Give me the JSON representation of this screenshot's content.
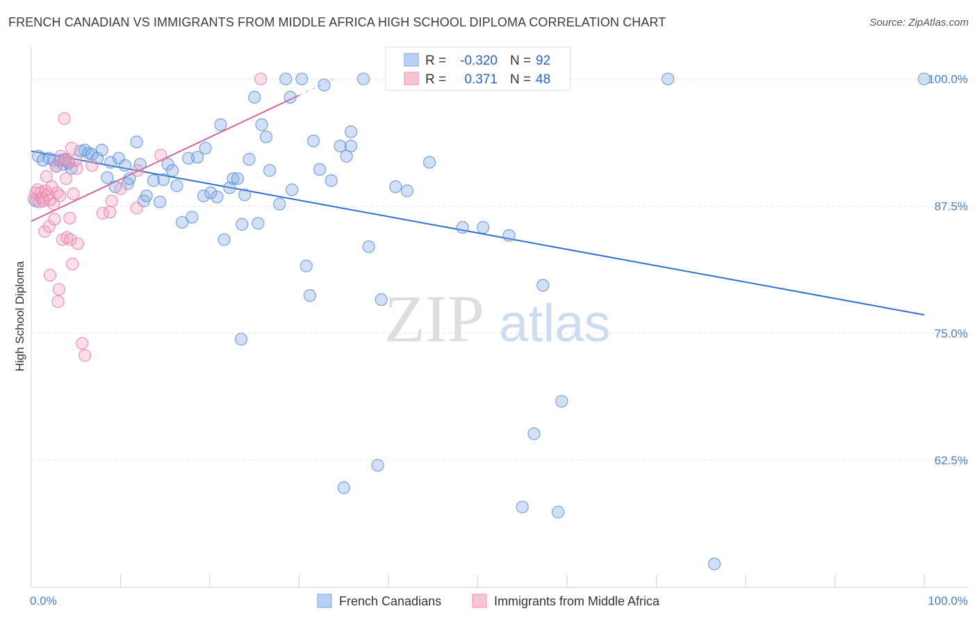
{
  "title": "FRENCH CANADIAN VS IMMIGRANTS FROM MIDDLE AFRICA HIGH SCHOOL DIPLOMA CORRELATION CHART",
  "source": "Source: ZipAtlas.com",
  "watermark": {
    "zip": "ZIP",
    "atlas": "atlas"
  },
  "chart_data": {
    "type": "scatter",
    "ylabel": "High School Diploma",
    "xlim": [
      0,
      100
    ],
    "ylim": [
      50,
      102.5
    ],
    "x_tick_labels": {
      "left": "0.0%",
      "right": "100.0%"
    },
    "y_ticks": [
      {
        "value": 100.0,
        "label": "100.0%"
      },
      {
        "value": 87.5,
        "label": "87.5%"
      },
      {
        "value": 75.0,
        "label": "75.0%"
      },
      {
        "value": 62.5,
        "label": "62.5%"
      }
    ],
    "legend": {
      "rows": [
        {
          "r_label": "R =",
          "r_value": "-0.320",
          "n_label": "N =",
          "n_value": "92",
          "color": "#7aa6e6"
        },
        {
          "r_label": "R =",
          "r_value": "0.371",
          "n_label": "N =",
          "n_value": "48",
          "color": "#f08cb0"
        }
      ]
    },
    "series": [
      {
        "name": "French Canadians",
        "color": "#7aa6e6",
        "stroke": "#5b8fd8",
        "trend": {
          "x": [
            0,
            100
          ],
          "y": [
            92.9,
            76.8
          ],
          "color": "#2f6fd0"
        },
        "points": [
          [
            0.8,
            92.4
          ],
          [
            1.3,
            92.0
          ],
          [
            2.0,
            92.2
          ],
          [
            2.5,
            92.0
          ],
          [
            2.8,
            91.4
          ],
          [
            3.2,
            92.0
          ],
          [
            3.6,
            91.6
          ],
          [
            4.2,
            91.7
          ],
          [
            4.5,
            91.2
          ],
          [
            5.5,
            92.9
          ],
          [
            6.0,
            93.0
          ],
          [
            6.4,
            92.7
          ],
          [
            6.8,
            92.6
          ],
          [
            7.4,
            92.2
          ],
          [
            7.9,
            93.0
          ],
          [
            8.5,
            90.3
          ],
          [
            8.9,
            91.8
          ],
          [
            9.4,
            89.4
          ],
          [
            9.8,
            92.2
          ],
          [
            10.5,
            91.5
          ],
          [
            10.8,
            89.7
          ],
          [
            11.0,
            90.2
          ],
          [
            11.8,
            93.8
          ],
          [
            12.2,
            91.6
          ],
          [
            12.6,
            88.0
          ],
          [
            12.9,
            88.5
          ],
          [
            13.7,
            90.0
          ],
          [
            14.4,
            87.9
          ],
          [
            14.8,
            90.1
          ],
          [
            15.3,
            91.6
          ],
          [
            15.8,
            91.0
          ],
          [
            16.3,
            89.5
          ],
          [
            16.9,
            85.9
          ],
          [
            17.6,
            92.2
          ],
          [
            18.0,
            86.4
          ],
          [
            18.6,
            92.3
          ],
          [
            19.3,
            88.5
          ],
          [
            19.5,
            93.2
          ],
          [
            20.1,
            88.8
          ],
          [
            20.8,
            88.4
          ],
          [
            21.2,
            95.5
          ],
          [
            21.6,
            84.2
          ],
          [
            22.2,
            89.3
          ],
          [
            22.6,
            90.2
          ],
          [
            23.1,
            90.2
          ],
          [
            23.5,
            74.4
          ],
          [
            23.6,
            85.7
          ],
          [
            23.9,
            88.6
          ],
          [
            24.4,
            92.1
          ],
          [
            25.0,
            98.2
          ],
          [
            25.4,
            85.8
          ],
          [
            25.8,
            95.5
          ],
          [
            26.3,
            94.3
          ],
          [
            26.7,
            91.0
          ],
          [
            27.8,
            87.7
          ],
          [
            28.5,
            100.0
          ],
          [
            29.0,
            98.2
          ],
          [
            29.2,
            89.1
          ],
          [
            30.3,
            100.0
          ],
          [
            30.8,
            81.6
          ],
          [
            31.2,
            78.7
          ],
          [
            31.6,
            93.9
          ],
          [
            32.3,
            91.1
          ],
          [
            32.8,
            99.4
          ],
          [
            33.6,
            90.0
          ],
          [
            34.6,
            93.4
          ],
          [
            35.3,
            92.4
          ],
          [
            35.8,
            94.8
          ],
          [
            35.8,
            93.4
          ],
          [
            37.2,
            100.0
          ],
          [
            37.8,
            83.5
          ],
          [
            38.8,
            62.0
          ],
          [
            39.2,
            78.3
          ],
          [
            40.8,
            89.4
          ],
          [
            42.1,
            89.0
          ],
          [
            44.6,
            91.8
          ],
          [
            46.6,
            100.0
          ],
          [
            48.3,
            85.4
          ],
          [
            50.4,
            100.0
          ],
          [
            50.6,
            85.4
          ],
          [
            53.5,
            84.6
          ],
          [
            55.0,
            57.9
          ],
          [
            56.3,
            65.1
          ],
          [
            57.3,
            79.7
          ],
          [
            59.0,
            57.4
          ],
          [
            59.4,
            68.3
          ],
          [
            71.3,
            100.0
          ],
          [
            76.5,
            52.3
          ],
          [
            100.0,
            100.0
          ],
          [
            35.0,
            59.8
          ],
          [
            0.5,
            88.0
          ],
          [
            3.8,
            92.1
          ]
        ]
      },
      {
        "name": "Immigrants from Middle Africa",
        "color": "#f4a0bf",
        "stroke": "#e87ea6",
        "trend": {
          "x": [
            0,
            30
          ],
          "y": [
            86.0,
            98.4
          ],
          "color": "#e0608e"
        },
        "points": [
          [
            0.3,
            88.2
          ],
          [
            0.5,
            88.8
          ],
          [
            0.7,
            89.1
          ],
          [
            0.9,
            87.9
          ],
          [
            1.1,
            88.8
          ],
          [
            1.2,
            88.3
          ],
          [
            1.4,
            88.0
          ],
          [
            1.5,
            85.0
          ],
          [
            1.6,
            89.0
          ],
          [
            1.7,
            90.4
          ],
          [
            1.9,
            88.6
          ],
          [
            2.0,
            85.5
          ],
          [
            2.1,
            80.7
          ],
          [
            2.1,
            88.1
          ],
          [
            2.3,
            89.4
          ],
          [
            2.5,
            87.7
          ],
          [
            2.6,
            86.2
          ],
          [
            2.8,
            91.4
          ],
          [
            2.9,
            88.8
          ],
          [
            3.0,
            78.1
          ],
          [
            3.1,
            79.3
          ],
          [
            3.2,
            88.5
          ],
          [
            3.3,
            92.4
          ],
          [
            3.5,
            84.2
          ],
          [
            3.7,
            96.1
          ],
          [
            3.8,
            92.0
          ],
          [
            3.9,
            90.2
          ],
          [
            4.0,
            84.4
          ],
          [
            4.2,
            91.9
          ],
          [
            4.3,
            86.3
          ],
          [
            4.4,
            84.2
          ],
          [
            4.5,
            93.2
          ],
          [
            4.6,
            81.8
          ],
          [
            4.7,
            88.7
          ],
          [
            5.0,
            92.0
          ],
          [
            5.1,
            91.2
          ],
          [
            5.2,
            83.8
          ],
          [
            5.7,
            74.0
          ],
          [
            6.0,
            72.8
          ],
          [
            6.8,
            91.5
          ],
          [
            8.0,
            86.8
          ],
          [
            8.8,
            86.9
          ],
          [
            9.0,
            88.0
          ],
          [
            10.0,
            89.2
          ],
          [
            11.8,
            87.3
          ],
          [
            11.9,
            91.0
          ],
          [
            14.5,
            92.5
          ],
          [
            25.7,
            100.0
          ]
        ]
      }
    ]
  },
  "bottom_legend": [
    {
      "label": "French Canadians",
      "color": "#7aa6e6"
    },
    {
      "label": "Immigrants from Middle Africa",
      "color": "#f4a0bf"
    }
  ]
}
